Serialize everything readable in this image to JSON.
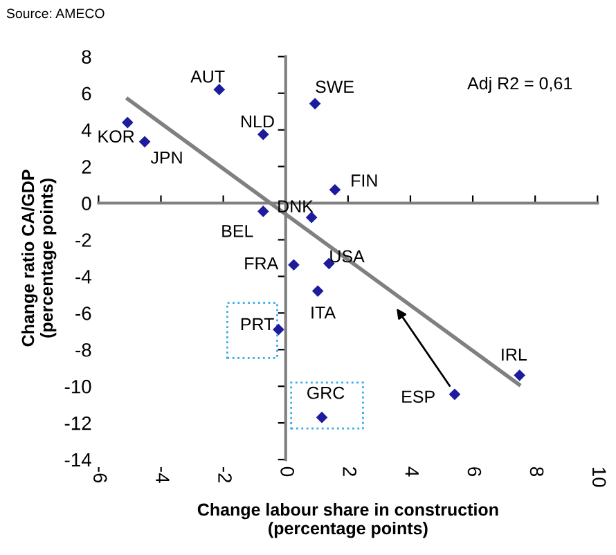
{
  "chart_data": {
    "type": "scatter",
    "xlabel": "Change labour share in construction\n(percentage points)",
    "ylabel": "Change ratio CA/GDP\n(percentage points)",
    "xlim": [
      -6,
      10
    ],
    "xticks": [
      -6,
      -4,
      -2,
      0,
      2,
      4,
      6,
      8,
      10
    ],
    "ylim": [
      -14,
      8
    ],
    "yticks": [
      -14,
      -12,
      -10,
      -8,
      -6,
      -4,
      -2,
      0,
      2,
      4,
      6,
      8
    ],
    "legend": false,
    "marker": "diamond",
    "series": [
      {
        "color": "#1c1c9c",
        "x": [
          -2.13,
          -5.07,
          -4.52,
          -0.72,
          0.94,
          1.58,
          0.83,
          -0.72,
          0.26,
          1.39,
          1.03,
          -0.23,
          1.16,
          5.42,
          7.5
        ],
        "values": [
          6.2,
          4.4,
          3.35,
          3.75,
          5.43,
          0.73,
          -0.78,
          -0.45,
          -3.37,
          -3.3,
          -4.8,
          -6.9,
          -11.7,
          -10.44,
          -9.4
        ]
      },
      {
        "type": "line",
        "marker": "none",
        "color": "#808080",
        "x": [
          -5.06,
          7.48
        ],
        "values": [
          5.68,
          -9.9
        ]
      }
    ],
    "annotations": [
      {
        "text": "AUT",
        "x": -2.13,
        "y": 6.2
      },
      {
        "text": "KOR",
        "x": -5.07,
        "y": 4.4
      },
      {
        "text": "JPN",
        "x": -4.52,
        "y": 3.35
      },
      {
        "text": "NLD",
        "x": -0.72,
        "y": 3.75
      },
      {
        "text": "SWE",
        "x": 0.94,
        "y": 5.43
      },
      {
        "text": "FIN",
        "x": 1.58,
        "y": 0.73
      },
      {
        "text": "DNK",
        "x": 0.83,
        "y": -0.78
      },
      {
        "text": "BEL",
        "x": -0.72,
        "y": -0.45
      },
      {
        "text": "FRA",
        "x": 0.26,
        "y": -3.37
      },
      {
        "text": "USA",
        "x": 1.39,
        "y": -3.3
      },
      {
        "text": "ITA",
        "x": 1.03,
        "y": -4.8
      },
      {
        "text": "PRT",
        "x": -0.23,
        "y": -6.9
      },
      {
        "text": "GRC",
        "x": 1.16,
        "y": -11.7
      },
      {
        "text": "ESP",
        "x": 5.42,
        "y": -10.44
      },
      {
        "text": "IRL",
        "x": 7.5,
        "y": -9.4
      },
      "Adj R2 = 0,61",
      "Source: AMECO"
    ]
  }
}
